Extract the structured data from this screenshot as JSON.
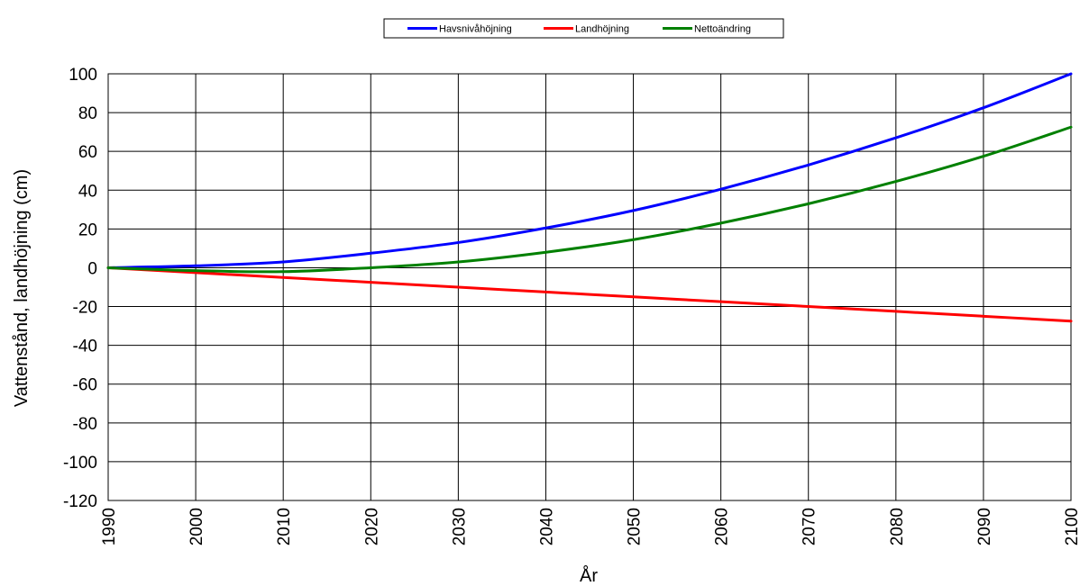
{
  "chart_data": {
    "type": "line",
    "xlabel": "År",
    "ylabel": "Vattenstånd, landhöjning (cm)",
    "xlim": [
      1990,
      2100
    ],
    "ylim": [
      -120,
      100
    ],
    "xticks": [
      1990,
      2000,
      2010,
      2020,
      2030,
      2040,
      2050,
      2060,
      2070,
      2080,
      2090,
      2100
    ],
    "yticks": [
      -120,
      -100,
      -80,
      -60,
      -40,
      -20,
      0,
      20,
      40,
      60,
      80,
      100
    ],
    "grid": true,
    "legend_position": "top-center",
    "x": [
      1990,
      2000,
      2010,
      2020,
      2030,
      2040,
      2050,
      2060,
      2070,
      2080,
      2090,
      2100
    ],
    "series": [
      {
        "name": "Havsnivåhöjning",
        "color": "#0000ff",
        "values": [
          0,
          1,
          3,
          7.5,
          13,
          20.5,
          29.5,
          40.5,
          53,
          67,
          82.5,
          100
        ]
      },
      {
        "name": "Landhöjning",
        "color": "#ff0000",
        "values": [
          0,
          -2.5,
          -5,
          -7.5,
          -10,
          -12.5,
          -15,
          -17.5,
          -20,
          -22.5,
          -25,
          -27.5
        ]
      },
      {
        "name": "Nettoändring",
        "color": "#008000",
        "values": [
          0,
          -1.5,
          -2,
          0,
          3,
          8,
          14.5,
          23,
          33,
          44.5,
          57.5,
          72.5
        ]
      }
    ]
  }
}
